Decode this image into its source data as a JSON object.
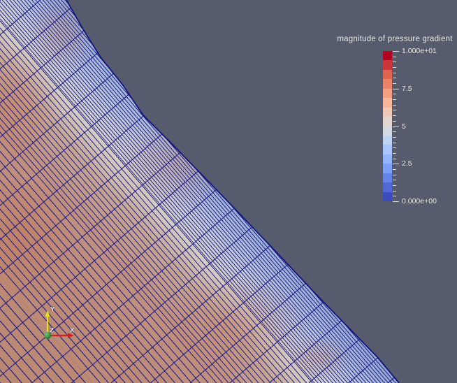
{
  "legend": {
    "title": "magnitude of pressure gradient",
    "field_range": [
      0,
      10
    ],
    "tick_labels": [
      "1.000e+01",
      "7.5",
      "5",
      "2.5",
      "0.000e+00"
    ],
    "max_label": "1.000e+01",
    "min_label": "0.000e+00",
    "colors_top_to_bottom": [
      "#b40426",
      "#ca363b",
      "#df6550",
      "#eb8369",
      "#f4a082",
      "#f5b69c",
      "#f0c9b7",
      "#e3d6d0",
      "#d3dae5",
      "#bfd3f3",
      "#aac5fb",
      "#93b4fd",
      "#7c9ef6",
      "#6585eb",
      "#5069d6",
      "#3b4cc0"
    ],
    "text_color": "#e9e9df"
  },
  "orientation_axes": {
    "x_label": "X",
    "y_label": "Y",
    "z_label": "Z",
    "x_color": "#cf211a",
    "y_color": "#e3df25",
    "z_color": "#177a17"
  },
  "scene": {
    "background_color": "#565b6e",
    "mesh_line_color": "#1d1d87",
    "mesh_edge_color": "#15157b"
  }
}
